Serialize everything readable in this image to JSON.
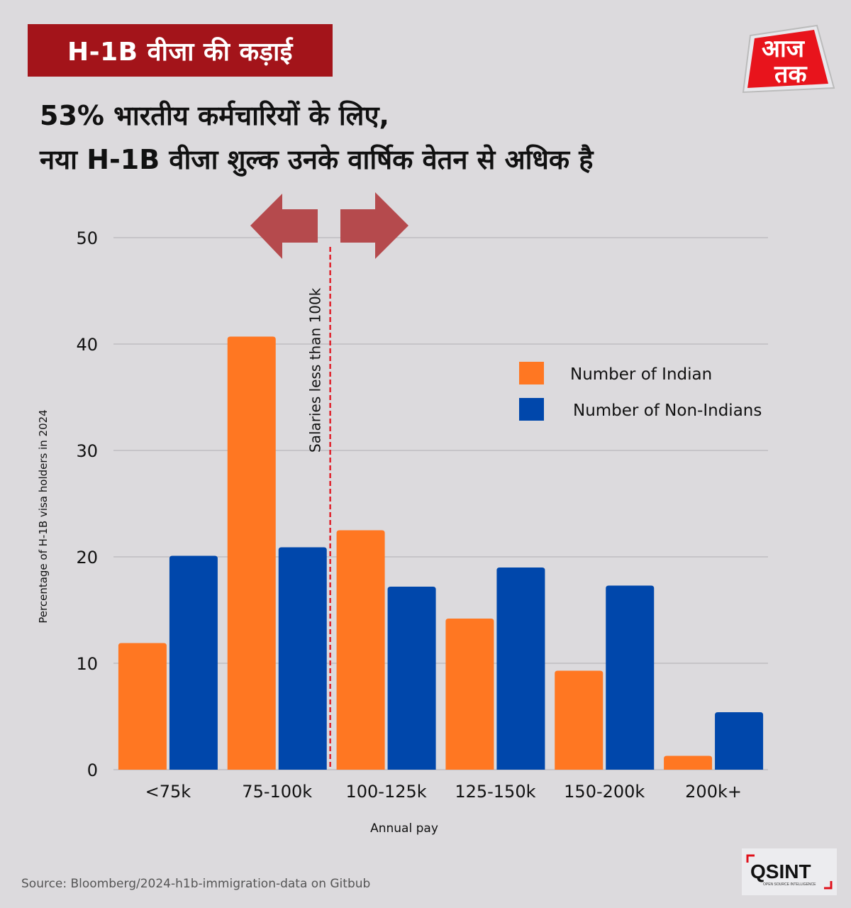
{
  "header": {
    "tag_label": "H-1B वीजा की कड़ाई",
    "headline_lines": [
      "53% भारतीय कर्मचारियों के लिए,",
      "नया H-1B वीजा शुल्क उनके वार्षिक वेतन से अधिक है"
    ],
    "brand_logo": {
      "icon": "aaj-tak-logo-icon",
      "text_line1": "आज",
      "text_line2": "तक"
    }
  },
  "footer": {
    "source": "Source: Bloomberg/2024-h1b-immigration-data on Gitbub",
    "osint_logo": {
      "icon": "osint-logo-icon",
      "text": "QSINT",
      "subtext": "OPEN SOURCE INTELLIGENCE"
    }
  },
  "colors": {
    "indian": "#ff7722",
    "non_indian": "#0047ab",
    "tag_bg": "#a3141a",
    "arrow": "#b54a4d",
    "threshold_line": "#e0202a",
    "background": "#dcdadd"
  },
  "chart_data": {
    "type": "bar",
    "title": "53% भारतीय कर्मचारियों के लिए, नया H-1B वीजा शुल्क उनके वार्षिक वेतन से अधिक है",
    "xlabel": "Annual pay",
    "ylabel": "Percentage of H-1B visa holders in 2024",
    "categories": [
      "<75k",
      "75-100k",
      "100-125k",
      "125-150k",
      "150-200k",
      "200k+"
    ],
    "series": [
      {
        "name": "Number of Indian",
        "color": "#ff7722",
        "values": [
          11.9,
          40.7,
          22.5,
          14.2,
          9.3,
          1.3
        ]
      },
      {
        "name": "Number of Non-Indians",
        "color": "#0047ab",
        "values": [
          20.1,
          20.9,
          17.2,
          19.0,
          17.3,
          5.4
        ]
      }
    ],
    "ylim": [
      0,
      50
    ],
    "yticks": [
      0,
      10,
      20,
      30,
      40,
      50
    ],
    "grid": true,
    "legend": {
      "placement": "upper-right",
      "entries": [
        "Number of Indian",
        "Number of Non-Indians"
      ]
    },
    "annotations": [
      {
        "type": "vertical-dashed-line",
        "between": [
          "75-100k",
          "100-125k"
        ],
        "label": "Salaries less than 100k"
      },
      {
        "type": "double-arrow",
        "position": "above threshold line",
        "directions": [
          "left",
          "right"
        ]
      }
    ]
  }
}
